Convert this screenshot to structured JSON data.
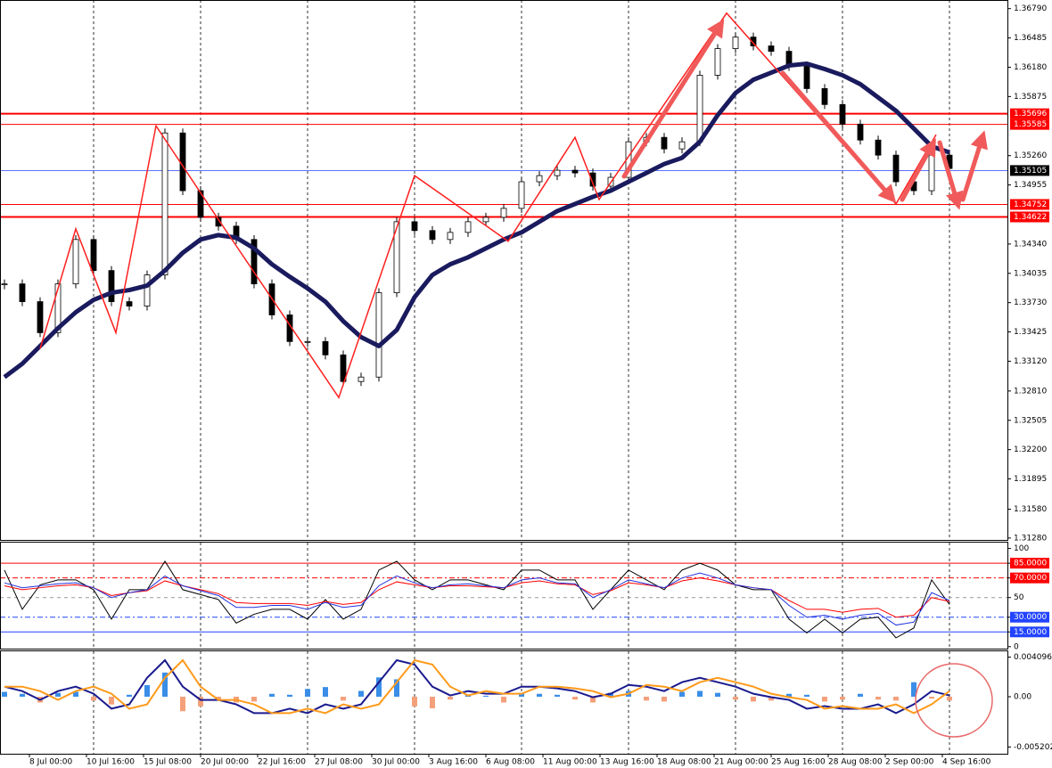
{
  "chart_data": {
    "type": "candlestick",
    "xlim": [
      -0.25,
      56.25
    ],
    "ylim": [
      1.3126,
      1.3688
    ],
    "yticks": [
      {
        "value": 1.3679,
        "label": "1.36790"
      },
      1.36485,
      {
        "value": 1.3618,
        "label": "1.36180"
      },
      1.35875,
      {
        "value": 1.3526,
        "label": "1.35260"
      },
      1.34955,
      {
        "value": 1.3434,
        "label": "1.34340"
      },
      1.34035,
      {
        "value": 1.3373,
        "label": "1.33730"
      },
      1.33425,
      {
        "value": 1.3312,
        "label": "1.33120"
      },
      {
        "value": 1.3281,
        "label": "1.32810"
      },
      1.32505,
      {
        "value": 1.322,
        "label": "1.32200"
      },
      1.31895,
      {
        "value": 1.3158,
        "label": "1.31580"
      },
      {
        "value": 1.3128,
        "label": "1.31280"
      }
    ],
    "x_labels": [
      {
        "value": 1.4,
        "label": "8 Jul 00:00"
      },
      {
        "value": 4.6,
        "label": "10 Jul 16:00"
      },
      {
        "value": 7.8,
        "label": "15 Jul 08:00"
      },
      {
        "value": 11,
        "label": "20 Jul 00:00"
      },
      {
        "value": 14.2,
        "label": "22 Jul 16:00"
      },
      {
        "value": 17.4,
        "label": "27 Jul 08:00"
      },
      {
        "value": 20.6,
        "label": "30 Jul 00:00"
      },
      {
        "value": 23.8,
        "label": "3 Aug 16:00"
      },
      {
        "value": 27,
        "label": "6 Aug 08:00"
      },
      {
        "value": 30.2,
        "label": "11 Aug 00:00"
      },
      {
        "value": 33.4,
        "label": "13 Aug 16:00"
      },
      {
        "value": 36.6,
        "label": "18 Aug 08:00"
      },
      {
        "value": 39.8,
        "label": "21 Aug 00:00"
      },
      {
        "value": 43,
        "label": "25 Aug 16:00"
      },
      {
        "value": 46.2,
        "label": "28 Aug 08:00"
      },
      {
        "value": 49.4,
        "label": "2 Sep 00:00"
      },
      {
        "value": 52.6,
        "label": "4 Sep 16:00"
      }
    ],
    "xgrid": [
      5,
      11,
      17,
      23,
      29,
      35,
      41,
      47,
      53
    ],
    "close": [
      1.33925,
      1.3374,
      1.33417,
      1.33925,
      1.34387,
      1.34064,
      1.3374,
      1.33694,
      1.34018,
      1.35496,
      1.34895,
      1.34618,
      1.34526,
      1.34387,
      1.33925,
      1.33602,
      1.33325,
      1.33325,
      1.33186,
      1.32909,
      1.32955,
      1.33833,
      1.34572,
      1.3448,
      1.34387,
      1.34461,
      1.34572,
      1.34618,
      1.34711,
      1.34988,
      1.35052,
      1.35108,
      1.3508,
      1.34942,
      1.35034,
      1.35404,
      1.3545,
      1.3533,
      1.35404,
      1.36097,
      1.36374,
      1.36494,
      1.36402,
      1.36346,
      1.36189,
      1.35958,
      1.35792,
      1.35588,
      1.35422,
      1.35265,
      1.34988,
      1.34895,
      1.35265,
      1.35126
    ],
    "ma": {
      "color": "#1a1a5e",
      "values": [
        1.32955,
        1.33094,
        1.33278,
        1.33463,
        1.3363,
        1.33759,
        1.33833,
        1.33861,
        1.33907,
        1.34064,
        1.34249,
        1.34387,
        1.34433,
        1.34406,
        1.34295,
        1.34129,
        1.33999,
        1.33879,
        1.3374,
        1.33537,
        1.33371,
        1.33278,
        1.33445,
        1.33787,
        1.34018,
        1.34129,
        1.34202,
        1.34295,
        1.34387,
        1.34461,
        1.34572,
        1.34683,
        1.34757,
        1.34831,
        1.34895,
        1.34988,
        1.3508,
        1.35173,
        1.35237,
        1.35404,
        1.35681,
        1.35912,
        1.3605,
        1.36124,
        1.36198,
        1.36217,
        1.36161,
        1.36097,
        1.36004,
        1.35866,
        1.35727,
        1.35542,
        1.35357,
        1.35293
      ]
    },
    "zigzag": {
      "color": "#ff2020",
      "x": [
        2,
        4,
        6.25,
        8.5,
        11.75,
        18.75,
        23,
        28.25,
        32,
        33.35,
        40.5,
        50,
        52.25
      ],
      "values": [
        1.33251,
        1.34498,
        1.33417,
        1.3557,
        1.34664,
        1.32742,
        1.35052,
        1.34369,
        1.3545,
        1.34803,
        1.36743,
        1.34757,
        1.35478
      ]
    },
    "levels": [
      1.35696,
      1.35585,
      1.35105,
      1.34752,
      1.34622
    ],
    "level_colors": [
      "#ff0000",
      "#ff0000",
      "#2244ff",
      "#ff0000",
      "#ff0000"
    ],
    "level_box_colors": [
      "#ff0000",
      "#ff0000",
      "#000000",
      "#ff0000",
      "#ff0000"
    ],
    "level_widths": [
      2,
      1,
      0.8,
      1,
      2
    ],
    "rsi": {
      "ylim": [
        -2,
        106
      ],
      "yticks": [
        100,
        {
          "value": 85,
          "label": "85.0000"
        },
        {
          "value": 70,
          "label": "70.0000"
        },
        50,
        {
          "value": 30,
          "label": "30.0000"
        },
        {
          "value": 15,
          "label": "15.0000"
        },
        0
      ],
      "levels": [
        85,
        70,
        50,
        30,
        15
      ],
      "level_colors": [
        "#ff0000",
        "#ff0000",
        "#999999",
        "#2244ff",
        "#2244ff"
      ],
      "level_dash": [
        "",
        "6 3 2 3",
        "4 4",
        "6 3 2 3",
        ""
      ],
      "series": [
        {
          "color": "#000000",
          "values": [
            78,
            38,
            63,
            68,
            68,
            58,
            28,
            58,
            58,
            87,
            58,
            53,
            48,
            24,
            33,
            38,
            38,
            28,
            48,
            28,
            38,
            78,
            87,
            68,
            58,
            68,
            68,
            63,
            58,
            78,
            78,
            68,
            68,
            38,
            58,
            78,
            68,
            58,
            78,
            85,
            78,
            63,
            58,
            58,
            28,
            14,
            28,
            14,
            28,
            30,
            9,
            19,
            68,
            43
          ]
        },
        {
          "color": "#ff0000",
          "values": [
            62,
            58,
            60,
            62,
            63,
            60,
            52,
            55,
            57,
            67,
            62,
            58,
            54,
            45,
            44,
            44,
            44,
            42,
            46,
            43,
            45,
            58,
            66,
            63,
            60,
            62,
            62,
            61,
            60,
            65,
            67,
            64,
            63,
            53,
            57,
            65,
            63,
            60,
            67,
            70,
            67,
            63,
            60,
            58,
            47,
            38,
            38,
            35,
            38,
            39,
            30,
            32,
            50,
            46
          ]
        },
        {
          "color": "#2233dd",
          "values": [
            65,
            60,
            62,
            64,
            65,
            60,
            50,
            55,
            58,
            72,
            62,
            57,
            52,
            40,
            40,
            42,
            42,
            38,
            45,
            40,
            42,
            62,
            72,
            65,
            60,
            63,
            64,
            62,
            60,
            68,
            70,
            65,
            64,
            50,
            58,
            68,
            64,
            60,
            70,
            75,
            70,
            63,
            60,
            58,
            42,
            30,
            32,
            28,
            32,
            34,
            22,
            25,
            55,
            47
          ]
        }
      ]
    },
    "macd": {
      "ylim": [
        -0.0059,
        0.0047
      ],
      "yticks": [
        0.0040965,
        {
          "value": 0,
          "label": "0.00"
        },
        -0.005202
      ],
      "histogram": [
        0.0005,
        0.0003,
        -0.0006,
        0.0004,
        0.0005,
        -0.0004,
        -0.0008,
        0.0002,
        0.0012,
        0.0025,
        -0.0015,
        -0.001,
        -0.0004,
        -0.0006,
        -0.0005,
        0.0003,
        0.0002,
        0.0008,
        0.001,
        -0.0004,
        0.0006,
        0.002,
        0.0018,
        -0.001,
        -0.0012,
        -0.0003,
        0.0002,
        0.0001,
        -0.0006,
        0.0004,
        0.0003,
        0.0002,
        -0.0003,
        -0.0006,
        0.0004,
        0.0006,
        -0.0004,
        -0.0005,
        0.0005,
        0.0006,
        0.0004,
        -0.0003,
        -0.0005,
        -0.0004,
        0.0003,
        0.0002,
        -0.0005,
        -0.0003,
        0.0003,
        -0.0003,
        -0.0004,
        0.0015,
        -0.0002,
        -0.0004
      ],
      "histogram_colors": [
        "#3a8ee8",
        "#f4a07a"
      ],
      "series": [
        {
          "color": "#1a1a8e",
          "values": [
            0.00104,
            0.00058,
            -0.00033,
            0.00058,
            0.00104,
            0.00031,
            -0.00124,
            -0.00079,
            0.00196,
            0.00378,
            0.00104,
            -0.00033,
            -0.00033,
            -0.00079,
            -0.0017,
            -0.0017,
            -0.00124,
            -0.0017,
            -0.00079,
            -0.00124,
            -0.00079,
            0.0015,
            0.00378,
            0.00333,
            0.00104,
            0.00013,
            0.00058,
            0.00031,
            0.00031,
            0.00104,
            0.00104,
            0.00086,
            0.00058,
            -5e-05,
            0.00031,
            0.00122,
            0.00104,
            0.00058,
            0.0015,
            0.00196,
            0.0015,
            0.00104,
            0.00031,
            -5e-05,
            -0.00033,
            -0.00124,
            -0.00097,
            -0.00124,
            -0.00124,
            -0.00079,
            -0.0017,
            -0.00079,
            0.00058,
            0.00013
          ]
        },
        {
          "color": "#ff9a1a",
          "values": [
            0.00104,
            0.00104,
            0.00058,
            -0.00033,
            0.00058,
            0.00104,
            0.00031,
            -0.00124,
            -0.00079,
            0.00196,
            0.00378,
            0.00104,
            -0.00033,
            -0.00033,
            -0.00079,
            -0.0017,
            -0.0017,
            -0.00124,
            -0.0017,
            -0.00079,
            -0.00124,
            -0.00079,
            0.0015,
            0.00378,
            0.00333,
            0.00104,
            0.00013,
            0.00058,
            0.00031,
            0.00031,
            0.00104,
            0.00104,
            0.00086,
            0.00058,
            -5e-05,
            0.00031,
            0.00122,
            0.00104,
            0.00058,
            0.0015,
            0.00196,
            0.0015,
            0.00104,
            0.00031,
            -5e-05,
            -0.00033,
            -0.00124,
            -0.00097,
            -0.00124,
            -0.00124,
            -0.00079,
            -0.0017,
            -0.00079,
            0.00058
          ]
        }
      ]
    }
  }
}
